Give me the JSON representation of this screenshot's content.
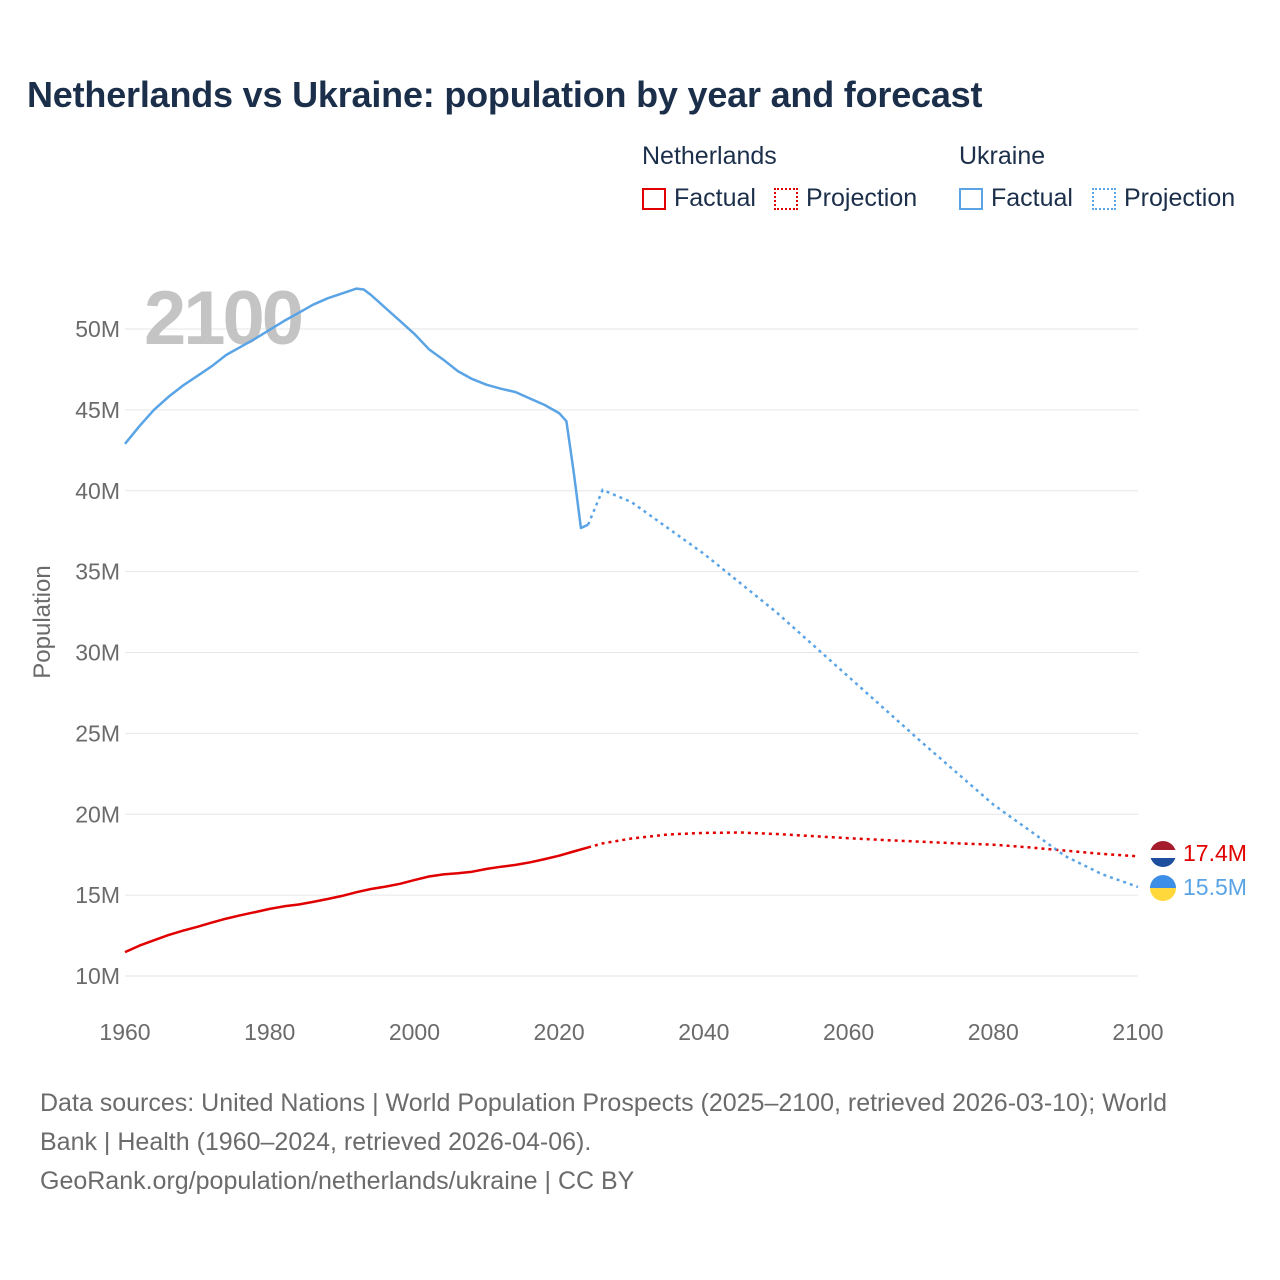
{
  "title": "Netherlands vs Ukraine: population by year and forecast",
  "legend": {
    "netherlands": {
      "label": "Netherlands",
      "factual": "Factual",
      "projection": "Projection",
      "color": "#e00000"
    },
    "ukraine": {
      "label": "Ukraine",
      "factual": "Factual",
      "projection": "Projection",
      "color": "#5aa4e6"
    }
  },
  "colors": {
    "title": "#1b2f4b",
    "axis_text": "#6b6b6b",
    "grid": "#e6e6e6",
    "year_watermark": "#c4c4c4"
  },
  "icons": {
    "netherlands_flag": "netherlands-flag-icon",
    "ukraine_flag": "ukraine-flag-icon"
  },
  "chart_data": {
    "type": "line",
    "year_overlay": "2100",
    "ylabel": "Population",
    "xlim": [
      1960,
      2100
    ],
    "ylim": [
      10000000,
      52000000
    ],
    "xticks": [
      1960,
      1980,
      2000,
      2020,
      2040,
      2060,
      2080,
      2100
    ],
    "xtick_labels": [
      "1960",
      "1980",
      "2000",
      "2020",
      "2040",
      "2060",
      "2080",
      "2100"
    ],
    "yticks": [
      10000000,
      15000000,
      20000000,
      25000000,
      30000000,
      35000000,
      40000000,
      45000000,
      50000000
    ],
    "ytick_labels": [
      "10M",
      "15M",
      "20M",
      "25M",
      "30M",
      "35M",
      "40M",
      "45M",
      "50M"
    ],
    "series": [
      {
        "name": "Netherlands",
        "color": "#e00000",
        "end_label": "17.4M",
        "factual": [
          [
            1960,
            11480000
          ],
          [
            1962,
            11880000
          ],
          [
            1964,
            12210000
          ],
          [
            1966,
            12530000
          ],
          [
            1968,
            12800000
          ],
          [
            1970,
            13040000
          ],
          [
            1972,
            13300000
          ],
          [
            1974,
            13550000
          ],
          [
            1976,
            13760000
          ],
          [
            1978,
            13950000
          ],
          [
            1980,
            14150000
          ],
          [
            1982,
            14310000
          ],
          [
            1984,
            14420000
          ],
          [
            1986,
            14580000
          ],
          [
            1988,
            14760000
          ],
          [
            1990,
            14950000
          ],
          [
            1992,
            15180000
          ],
          [
            1994,
            15380000
          ],
          [
            1996,
            15530000
          ],
          [
            1998,
            15700000
          ],
          [
            2000,
            15930000
          ],
          [
            2002,
            16150000
          ],
          [
            2004,
            16280000
          ],
          [
            2006,
            16350000
          ],
          [
            2008,
            16450000
          ],
          [
            2010,
            16620000
          ],
          [
            2012,
            16760000
          ],
          [
            2014,
            16870000
          ],
          [
            2016,
            17030000
          ],
          [
            2018,
            17230000
          ],
          [
            2020,
            17440000
          ],
          [
            2022,
            17700000
          ],
          [
            2024,
            17950000
          ]
        ],
        "projection": [
          [
            2024,
            17950000
          ],
          [
            2026,
            18200000
          ],
          [
            2030,
            18500000
          ],
          [
            2035,
            18750000
          ],
          [
            2040,
            18850000
          ],
          [
            2045,
            18870000
          ],
          [
            2050,
            18780000
          ],
          [
            2055,
            18650000
          ],
          [
            2060,
            18520000
          ],
          [
            2065,
            18400000
          ],
          [
            2070,
            18300000
          ],
          [
            2075,
            18200000
          ],
          [
            2080,
            18120000
          ],
          [
            2085,
            17950000
          ],
          [
            2090,
            17750000
          ],
          [
            2095,
            17550000
          ],
          [
            2100,
            17400000
          ]
        ]
      },
      {
        "name": "Ukraine",
        "color": "#5aa4e6",
        "end_label": "15.5M",
        "factual": [
          [
            1960,
            42900000
          ],
          [
            1962,
            44000000
          ],
          [
            1964,
            45000000
          ],
          [
            1966,
            45800000
          ],
          [
            1968,
            46500000
          ],
          [
            1970,
            47100000
          ],
          [
            1972,
            47700000
          ],
          [
            1974,
            48400000
          ],
          [
            1976,
            48900000
          ],
          [
            1978,
            49400000
          ],
          [
            1980,
            49950000
          ],
          [
            1982,
            50500000
          ],
          [
            1984,
            51000000
          ],
          [
            1986,
            51500000
          ],
          [
            1988,
            51900000
          ],
          [
            1990,
            52200000
          ],
          [
            1992,
            52500000
          ],
          [
            1993,
            52440000
          ],
          [
            1994,
            52100000
          ],
          [
            1996,
            51300000
          ],
          [
            1998,
            50500000
          ],
          [
            2000,
            49700000
          ],
          [
            2002,
            48750000
          ],
          [
            2004,
            48100000
          ],
          [
            2006,
            47400000
          ],
          [
            2008,
            46900000
          ],
          [
            2010,
            46550000
          ],
          [
            2012,
            46300000
          ],
          [
            2014,
            46100000
          ],
          [
            2016,
            45700000
          ],
          [
            2018,
            45300000
          ],
          [
            2020,
            44800000
          ],
          [
            2021,
            44300000
          ],
          [
            2022,
            41200000
          ],
          [
            2023,
            37700000
          ],
          [
            2024,
            37900000
          ]
        ],
        "projection": [
          [
            2024,
            37900000
          ],
          [
            2026,
            40050000
          ],
          [
            2030,
            39300000
          ],
          [
            2040,
            36100000
          ],
          [
            2050,
            32500000
          ],
          [
            2060,
            28500000
          ],
          [
            2070,
            24500000
          ],
          [
            2080,
            20600000
          ],
          [
            2090,
            17400000
          ],
          [
            2095,
            16300000
          ],
          [
            2100,
            15500000
          ]
        ]
      }
    ]
  },
  "sources": {
    "line1": "Data sources: United Nations | World Population Prospects (2025–2100, retrieved 2026-03-10); World",
    "line2": "Bank | Health (1960–2024, retrieved 2026-04-06).",
    "line3": "GeoRank.org/population/netherlands/ukraine | CC BY"
  }
}
